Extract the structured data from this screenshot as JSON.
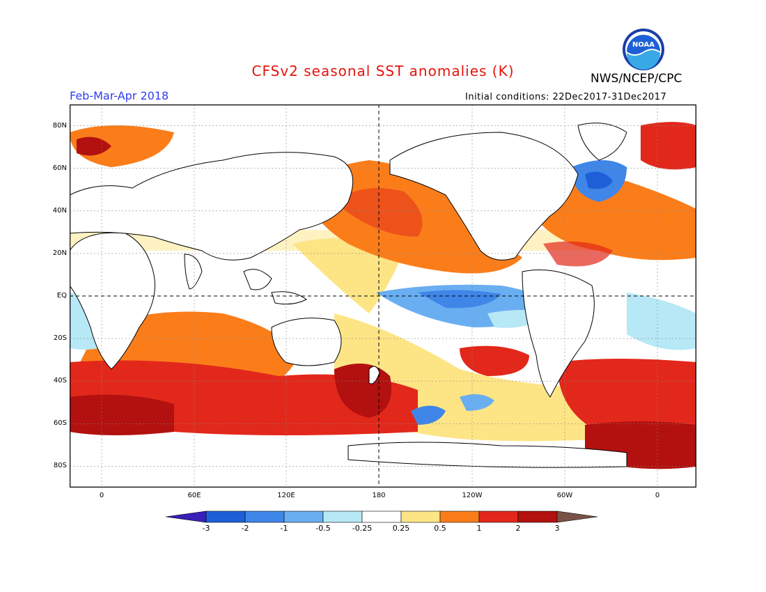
{
  "header": {
    "title": "CFSv2 seasonal SST anomalies (K)",
    "season": "Feb-Mar-Apr 2018",
    "org": "NWS/NCEP/CPC",
    "initial_conditions": "Initial conditions: 22Dec2017-31Dec2017",
    "logo_text": "NOAA"
  },
  "map": {
    "lat_labels": [
      "80N",
      "60N",
      "40N",
      "20N",
      "EQ",
      "20S",
      "40S",
      "60S",
      "80S"
    ],
    "lon_labels": [
      "0",
      "60E",
      "120E",
      "180",
      "120W",
      "60W",
      "0"
    ],
    "lat_range": [
      -90,
      90
    ],
    "lon_range": [
      -15,
      375
    ],
    "land_color": "#ffffff",
    "background_color": "#ffffff"
  },
  "colorbar": {
    "labels": [
      "-3",
      "-2",
      "-1",
      "-0.5",
      "-0.25",
      "0.25",
      "0.5",
      "1",
      "2",
      "3"
    ],
    "colors": [
      "#3a1fb8",
      "#1e5fd8",
      "#3f86e8",
      "#6aaef2",
      "#b7e8f5",
      "#ffffff",
      "#fde586",
      "#fb7d1a",
      "#e2281b",
      "#b2110f",
      "#7a5248"
    ]
  }
}
